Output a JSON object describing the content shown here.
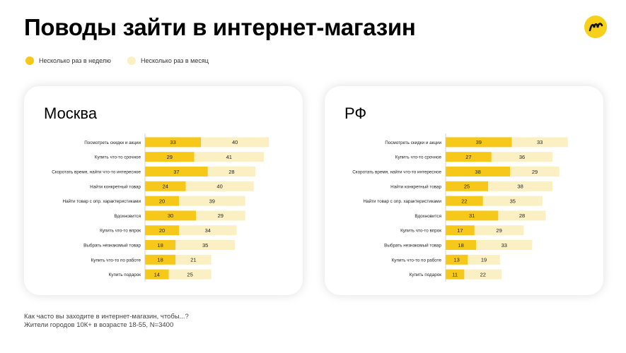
{
  "page": {
    "title": "Поводы зайти в интернет-магазин",
    "footnote_line1": "Как часто вы заходите в интернет-магазин, чтобы...?",
    "footnote_line2": "Жители городов 10К+ в возрасте 18-55, N=3400"
  },
  "legend": [
    {
      "label": "Несколько раз в неделю",
      "color": "#f5c81a"
    },
    {
      "label": "Несколько раз в месяц",
      "color": "#fbf0c4"
    }
  ],
  "chart_data": [
    {
      "type": "bar",
      "stacked": true,
      "orientation": "horizontal",
      "title": "Москва",
      "categories": [
        "Посмотреть скидки и акции",
        "Купить что-то срочное",
        "Скоротать время, найти что-то интересное",
        "Найти конкретный товар",
        "Найти товар с опр. характеристиками",
        "Вдохновится",
        "Купить что-то впрок",
        "Выбрать незнакомый товар",
        "Купить что-то по работе",
        "Купить подарок"
      ],
      "series": [
        {
          "name": "Несколько раз в неделю",
          "values": [
            33,
            29,
            37,
            24,
            20,
            30,
            20,
            18,
            18,
            14
          ]
        },
        {
          "name": "Несколько раз в месяц",
          "values": [
            40,
            41,
            28,
            40,
            39,
            29,
            34,
            35,
            21,
            25
          ]
        }
      ]
    },
    {
      "type": "bar",
      "stacked": true,
      "orientation": "horizontal",
      "title": "РФ",
      "categories": [
        "Посмотреть скидки и акции",
        "Купить что-то срочное",
        "Скоротать время, найти что-то интересное",
        "Найти конкретный товар",
        "Найти товар с опр. характеристиками",
        "Вдохновится",
        "Купить что-то впрок",
        "Выбрать незнакомый товар",
        "Купить что-то по работе",
        "Купить подарок"
      ],
      "series": [
        {
          "name": "Несколько раз в неделю",
          "values": [
            39,
            27,
            38,
            25,
            22,
            31,
            17,
            18,
            13,
            11
          ]
        },
        {
          "name": "Несколько раз в месяц",
          "values": [
            33,
            36,
            29,
            38,
            35,
            28,
            29,
            33,
            19,
            22
          ]
        }
      ]
    }
  ]
}
